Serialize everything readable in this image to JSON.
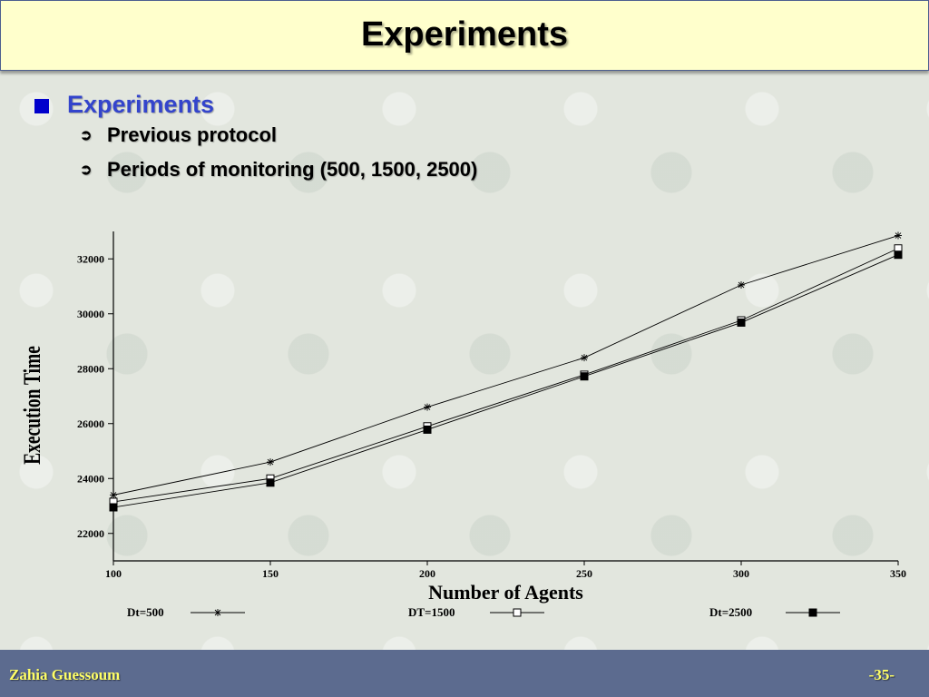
{
  "slide": {
    "title": "Experiments",
    "bullet": "Experiments",
    "sub_items": [
      "Previous protocol",
      "Periods of monitoring (500, 1500, 2500)"
    ],
    "footer_author": "Zahia Guessoum",
    "footer_page": "-35-"
  },
  "colors": {
    "bullet_square": "#0000cc",
    "bullet_text": "#3344cc",
    "title_bg": "#ffffcc",
    "footer_bg": "#5c6b8f",
    "footer_text": "#ffff66"
  },
  "icons": {
    "bullet": "filled-square-icon",
    "sub_bullet": "arrow-bullet-icon"
  },
  "chart_data": {
    "type": "line",
    "title": "",
    "xlabel": "Number of Agents",
    "ylabel": "Execution Time",
    "x": [
      100,
      150,
      200,
      250,
      300,
      350
    ],
    "xticks": [
      "100",
      "150",
      "200",
      "250",
      "300",
      "350"
    ],
    "yticks": [
      "22000",
      "24000",
      "26000",
      "28000",
      "30000",
      "32000"
    ],
    "xlim": [
      100,
      350
    ],
    "ylim": [
      21000,
      33000
    ],
    "legend_position": "bottom",
    "series": [
      {
        "name": "Dt=500",
        "marker": "asterisk",
        "values": [
          23400,
          24600,
          26600,
          28400,
          31050,
          32850
        ]
      },
      {
        "name": "DT=1500",
        "marker": "open-square",
        "values": [
          23150,
          24000,
          25900,
          27780,
          29760,
          32380
        ]
      },
      {
        "name": "Dt=2500",
        "marker": "filled-square",
        "values": [
          22950,
          23850,
          25780,
          27720,
          29680,
          32150
        ]
      }
    ]
  }
}
